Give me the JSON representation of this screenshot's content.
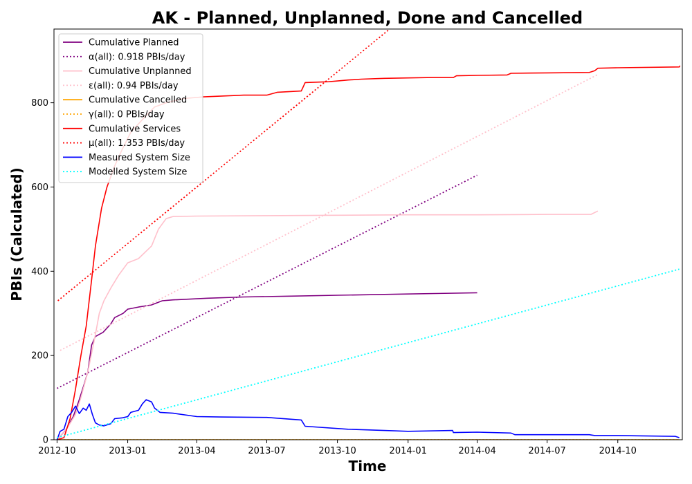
{
  "chart_data": {
    "type": "line",
    "title": "AK - Planned, Unplanned, Done  and Cancelled",
    "xlabel": "Time",
    "ylabel": "PBIs (Calculated)",
    "x_type": "date",
    "xlim": [
      "2012-09-27",
      "2014-12-24"
    ],
    "ylim": [
      0,
      975
    ],
    "x_ticks": [
      "2012-10-01",
      "2013-01-01",
      "2013-04-01",
      "2013-07-01",
      "2013-10-01",
      "2014-01-01",
      "2014-04-01",
      "2014-07-01",
      "2014-10-01"
    ],
    "x_tick_labels": [
      "2012-10",
      "2013-01",
      "2013-04",
      "2013-07",
      "2013-10",
      "2014-01",
      "2014-04",
      "2014-07",
      "2014-10"
    ],
    "y_ticks": [
      0,
      200,
      400,
      600,
      800
    ],
    "grid": false,
    "legend_position": "top-left",
    "series": [
      {
        "name": "Cumulative Planned",
        "color": "#800080",
        "style": "solid",
        "points": [
          [
            "2012-10-01",
            0
          ],
          [
            "2012-10-13",
            25
          ],
          [
            "2012-10-22",
            55
          ],
          [
            "2012-10-29",
            90
          ],
          [
            "2012-11-05",
            130
          ],
          [
            "2012-11-10",
            160
          ],
          [
            "2012-11-15",
            225
          ],
          [
            "2012-11-20",
            245
          ],
          [
            "2012-11-30",
            255
          ],
          [
            "2012-12-10",
            275
          ],
          [
            "2012-12-15",
            290
          ],
          [
            "2012-12-26",
            300
          ],
          [
            "2013-01-01",
            310
          ],
          [
            "2013-01-15",
            315
          ],
          [
            "2013-02-01",
            320
          ],
          [
            "2013-02-15",
            330
          ],
          [
            "2013-03-01",
            332
          ],
          [
            "2013-04-15",
            336
          ],
          [
            "2013-06-01",
            339
          ],
          [
            "2013-08-01",
            341
          ],
          [
            "2013-10-01",
            343
          ],
          [
            "2014-01-01",
            346
          ],
          [
            "2014-04-01",
            349
          ]
        ]
      },
      {
        "name": "α(all): 0.918 PBIs/day",
        "color": "#800080",
        "style": "dotted",
        "points": [
          [
            "2012-10-01",
            122
          ],
          [
            "2014-04-01",
            628
          ]
        ]
      },
      {
        "name": "Cumulative Unplanned",
        "color": "#ffc0cb",
        "style": "solid",
        "points": [
          [
            "2012-10-01",
            0
          ],
          [
            "2012-10-15",
            30
          ],
          [
            "2012-10-25",
            60
          ],
          [
            "2012-11-01",
            100
          ],
          [
            "2012-11-10",
            160
          ],
          [
            "2012-11-20",
            250
          ],
          [
            "2012-11-25",
            300
          ],
          [
            "2012-12-01",
            330
          ],
          [
            "2012-12-10",
            360
          ],
          [
            "2012-12-20",
            390
          ],
          [
            "2013-01-01",
            420
          ],
          [
            "2013-01-15",
            430
          ],
          [
            "2013-02-01",
            460
          ],
          [
            "2013-02-10",
            500
          ],
          [
            "2013-02-20",
            525
          ],
          [
            "2013-03-01",
            530
          ],
          [
            "2013-04-01",
            531
          ],
          [
            "2013-07-01",
            532
          ],
          [
            "2013-10-01",
            533
          ],
          [
            "2014-01-01",
            534
          ],
          [
            "2014-04-01",
            534
          ],
          [
            "2014-07-01",
            535
          ],
          [
            "2014-08-27",
            535
          ],
          [
            "2014-09-05",
            543
          ]
        ]
      },
      {
        "name": "ε(all): 0.94 PBIs/day",
        "color": "#ffc0cb",
        "style": "dotted",
        "points": [
          [
            "2012-10-05",
            212
          ],
          [
            "2014-09-05",
            867
          ]
        ]
      },
      {
        "name": "Cumulative Cancelled",
        "color": "#ffa500",
        "style": "solid",
        "points": [
          [
            "2012-10-01",
            0
          ],
          [
            "2014-12-20",
            0
          ]
        ]
      },
      {
        "name": "γ(all): 0 PBIs/day",
        "color": "#ffa500",
        "style": "dotted",
        "points": [
          [
            "2012-10-01",
            0
          ],
          [
            "2014-12-20",
            0
          ]
        ]
      },
      {
        "name": "Cumulative Services",
        "color": "#ff0000",
        "style": "solid",
        "points": [
          [
            "2012-10-01",
            0
          ],
          [
            "2012-10-10",
            5
          ],
          [
            "2012-10-18",
            50
          ],
          [
            "2012-10-25",
            120
          ],
          [
            "2012-11-01",
            200
          ],
          [
            "2012-11-08",
            270
          ],
          [
            "2012-11-15",
            380
          ],
          [
            "2012-11-20",
            460
          ],
          [
            "2012-11-28",
            550
          ],
          [
            "2012-12-05",
            600
          ],
          [
            "2012-12-15",
            650
          ],
          [
            "2012-12-25",
            690
          ],
          [
            "2013-01-05",
            730
          ],
          [
            "2013-01-20",
            760
          ],
          [
            "2013-02-05",
            790
          ],
          [
            "2013-02-20",
            800
          ],
          [
            "2013-03-15",
            810
          ],
          [
            "2013-04-10",
            814
          ],
          [
            "2013-06-01",
            818
          ],
          [
            "2013-07-01",
            818
          ],
          [
            "2013-07-15",
            825
          ],
          [
            "2013-08-15",
            828
          ],
          [
            "2013-08-20",
            848
          ],
          [
            "2013-09-20",
            850
          ],
          [
            "2013-10-15",
            854
          ],
          [
            "2013-11-01",
            856
          ],
          [
            "2013-12-01",
            858
          ],
          [
            "2014-01-01",
            859
          ],
          [
            "2014-02-01",
            860
          ],
          [
            "2014-03-01",
            860
          ],
          [
            "2014-03-05",
            864
          ],
          [
            "2014-04-01",
            865
          ],
          [
            "2014-05-10",
            866
          ],
          [
            "2014-05-15",
            870
          ],
          [
            "2014-07-01",
            871
          ],
          [
            "2014-08-25",
            872
          ],
          [
            "2014-09-01",
            876
          ],
          [
            "2014-09-05",
            882
          ],
          [
            "2014-10-01",
            883
          ],
          [
            "2014-12-20",
            885
          ],
          [
            "2014-12-21",
            888
          ]
        ]
      },
      {
        "name": "μ(all): 1.353 PBIs/day",
        "color": "#ff0000",
        "style": "dotted",
        "points": [
          [
            "2012-10-02",
            330
          ],
          [
            "2013-12-08",
            975
          ]
        ]
      },
      {
        "name": "Measured System Size",
        "color": "#0000ff",
        "style": "solid",
        "points": [
          [
            "2012-10-01",
            0
          ],
          [
            "2012-10-05",
            20
          ],
          [
            "2012-10-10",
            25
          ],
          [
            "2012-10-15",
            55
          ],
          [
            "2012-10-20",
            65
          ],
          [
            "2012-10-25",
            80
          ],
          [
            "2012-10-30",
            62
          ],
          [
            "2012-11-04",
            75
          ],
          [
            "2012-11-08",
            70
          ],
          [
            "2012-11-12",
            85
          ],
          [
            "2012-11-16",
            60
          ],
          [
            "2012-11-20",
            40
          ],
          [
            "2012-11-25",
            35
          ],
          [
            "2012-12-01",
            33
          ],
          [
            "2012-12-10",
            38
          ],
          [
            "2012-12-15",
            50
          ],
          [
            "2012-12-25",
            52
          ],
          [
            "2013-01-01",
            55
          ],
          [
            "2013-01-05",
            65
          ],
          [
            "2013-01-15",
            70
          ],
          [
            "2013-01-20",
            85
          ],
          [
            "2013-01-25",
            95
          ],
          [
            "2013-02-01",
            90
          ],
          [
            "2013-02-05",
            75
          ],
          [
            "2013-02-12",
            65
          ],
          [
            "2013-03-01",
            63
          ],
          [
            "2013-04-01",
            55
          ],
          [
            "2013-05-01",
            54
          ],
          [
            "2013-07-01",
            53
          ],
          [
            "2013-08-15",
            47
          ],
          [
            "2013-08-20",
            32
          ],
          [
            "2013-10-15",
            25
          ],
          [
            "2013-12-01",
            22
          ],
          [
            "2014-01-01",
            20
          ],
          [
            "2014-02-28",
            22
          ],
          [
            "2014-03-01",
            17
          ],
          [
            "2014-04-01",
            18
          ],
          [
            "2014-05-15",
            16
          ],
          [
            "2014-05-20",
            12
          ],
          [
            "2014-07-01",
            12
          ],
          [
            "2014-08-25",
            12
          ],
          [
            "2014-09-01",
            10
          ],
          [
            "2014-10-01",
            10
          ],
          [
            "2014-12-15",
            8
          ],
          [
            "2014-12-20",
            5
          ]
        ]
      },
      {
        "name": "Modelled System Size",
        "color": "#00ffff",
        "style": "dotted",
        "points": [
          [
            "2012-10-01",
            5
          ],
          [
            "2014-12-20",
            405
          ]
        ]
      }
    ]
  }
}
